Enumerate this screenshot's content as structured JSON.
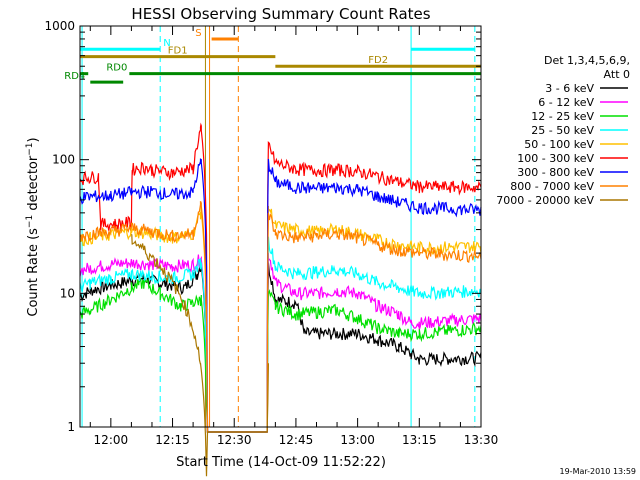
{
  "chart_data": {
    "type": "line",
    "title": "HESSI Observing Summary Count Rates",
    "xlabel": "Start Time (14-Oct-09 11:52:22)",
    "ylabel": "Count Rate (s⁻¹ detector⁻¹)",
    "ylabel_parts": {
      "pre": "Count Rate (s",
      "sup1": "−1",
      "mid": " detector",
      "sup2": "−1",
      "post": ")"
    },
    "y_scale": "log",
    "ylim": [
      1,
      1000
    ],
    "xlim_minutes": [
      -7.5,
      90
    ],
    "x_ticks": [
      {
        "label": "12:00",
        "minutes": 0
      },
      {
        "label": "12:15",
        "minutes": 15
      },
      {
        "label": "12:30",
        "minutes": 30
      },
      {
        "label": "12:45",
        "minutes": 45
      },
      {
        "label": "13:00",
        "minutes": 60
      },
      {
        "label": "13:15",
        "minutes": 75
      },
      {
        "label": "13:30",
        "minutes": 90
      }
    ],
    "y_ticks": [
      {
        "label": "1",
        "value": 1
      },
      {
        "label": "10",
        "value": 10
      },
      {
        "label": "100",
        "value": 100
      },
      {
        "label": "1000",
        "value": 1000
      }
    ],
    "legend_header": [
      "Det 1,3,4,5,6,9,",
      "Att 0"
    ],
    "series": [
      {
        "name": "3 - 6 keV",
        "color": "#000000",
        "points": [
          [
            -7.5,
            9.5
          ],
          [
            -5,
            10.5
          ],
          [
            0,
            11.5
          ],
          [
            5,
            12.5
          ],
          [
            8,
            13
          ],
          [
            12,
            12
          ],
          [
            18,
            11
          ],
          [
            21,
            14
          ],
          [
            21.8,
            16
          ],
          [
            22,
            16
          ],
          [
            23.5,
            0
          ],
          [
            38,
            0
          ],
          [
            38.3,
            16
          ],
          [
            40,
            9
          ],
          [
            45,
            8.5
          ],
          [
            47,
            5
          ],
          [
            60,
            5
          ],
          [
            65,
            4.5
          ],
          [
            70,
            4
          ],
          [
            73,
            3.5
          ],
          [
            75,
            3.2
          ],
          [
            90,
            3.3
          ]
        ]
      },
      {
        "name": "6 - 12 keV",
        "color": "#ff00ff",
        "points": [
          [
            -7.5,
            15
          ],
          [
            -5,
            15.5
          ],
          [
            0,
            16.5
          ],
          [
            5,
            17
          ],
          [
            10,
            16.5
          ],
          [
            15,
            16
          ],
          [
            20,
            16.5
          ],
          [
            21.8,
            18
          ],
          [
            22,
            18
          ],
          [
            23.5,
            0
          ],
          [
            38,
            0
          ],
          [
            38.3,
            20
          ],
          [
            40,
            12
          ],
          [
            45,
            10
          ],
          [
            50,
            10
          ],
          [
            55,
            10.5
          ],
          [
            60,
            10
          ],
          [
            65,
            8
          ],
          [
            70,
            7
          ],
          [
            73,
            6
          ],
          [
            75,
            6
          ],
          [
            90,
            6.5
          ]
        ]
      },
      {
        "name": "12 - 25 keV",
        "color": "#00e000",
        "points": [
          [
            -7.5,
            7
          ],
          [
            -5,
            7.5
          ],
          [
            0,
            9
          ],
          [
            5,
            11
          ],
          [
            8,
            12
          ],
          [
            12,
            10
          ],
          [
            17,
            8
          ],
          [
            20,
            8.5
          ],
          [
            21.8,
            9
          ],
          [
            22,
            9
          ],
          [
            23.5,
            0
          ],
          [
            38,
            0
          ],
          [
            38.3,
            10
          ],
          [
            40,
            8
          ],
          [
            45,
            7
          ],
          [
            55,
            7.5
          ],
          [
            60,
            6.5
          ],
          [
            65,
            5.5
          ],
          [
            70,
            5
          ],
          [
            75,
            5
          ],
          [
            90,
            5.5
          ]
        ]
      },
      {
        "name": "25 - 50 keV",
        "color": "#00ffff",
        "points": [
          [
            -7.5,
            11
          ],
          [
            -5,
            12
          ],
          [
            0,
            13
          ],
          [
            5,
            14
          ],
          [
            10,
            13.5
          ],
          [
            15,
            13
          ],
          [
            20,
            14
          ],
          [
            21.8,
            17
          ],
          [
            22,
            17
          ],
          [
            23.5,
            0
          ],
          [
            38,
            0
          ],
          [
            38.3,
            25
          ],
          [
            40,
            16
          ],
          [
            45,
            14
          ],
          [
            50,
            14.5
          ],
          [
            55,
            15
          ],
          [
            60,
            14
          ],
          [
            65,
            12
          ],
          [
            70,
            11
          ],
          [
            75,
            10
          ],
          [
            90,
            10.5
          ]
        ]
      },
      {
        "name": "50 - 100 keV",
        "color": "#ffc000",
        "points": [
          [
            -7.5,
            25
          ],
          [
            -5,
            26
          ],
          [
            0,
            27.5
          ],
          [
            5,
            29
          ],
          [
            10,
            28
          ],
          [
            15,
            26
          ],
          [
            20,
            28
          ],
          [
            21.8,
            40
          ],
          [
            22,
            40
          ],
          [
            23.5,
            0
          ],
          [
            38,
            0
          ],
          [
            38.3,
            45
          ],
          [
            40,
            32
          ],
          [
            45,
            30
          ],
          [
            50,
            29
          ],
          [
            55,
            30
          ],
          [
            60,
            28
          ],
          [
            65,
            25
          ],
          [
            70,
            23
          ],
          [
            75,
            22
          ],
          [
            90,
            22.5
          ]
        ]
      },
      {
        "name": "100 - 300 keV",
        "color": "#ff0000",
        "points": [
          [
            -7.5,
            72
          ],
          [
            -5,
            74
          ],
          [
            -3,
            75
          ],
          [
            -2.5,
            33
          ],
          [
            1,
            33
          ],
          [
            5,
            34
          ],
          [
            5.2,
            85
          ],
          [
            8,
            88
          ],
          [
            10,
            84
          ],
          [
            15,
            80
          ],
          [
            20,
            86
          ],
          [
            21.8,
            165
          ],
          [
            22,
            165
          ],
          [
            23.5,
            0
          ],
          [
            38,
            0
          ],
          [
            38.3,
            130
          ],
          [
            40,
            95
          ],
          [
            45,
            85
          ],
          [
            50,
            83
          ],
          [
            55,
            84
          ],
          [
            60,
            82
          ],
          [
            65,
            75
          ],
          [
            70,
            68
          ],
          [
            75,
            63
          ],
          [
            90,
            62
          ]
        ]
      },
      {
        "name": "300 - 800 keV",
        "color": "#0000ff",
        "points": [
          [
            -7.5,
            52
          ],
          [
            -5,
            53
          ],
          [
            0,
            54
          ],
          [
            5,
            57
          ],
          [
            10,
            58
          ],
          [
            15,
            55
          ],
          [
            20,
            57
          ],
          [
            21.8,
            95
          ],
          [
            22,
            95
          ],
          [
            23.5,
            0
          ],
          [
            38,
            0
          ],
          [
            38.3,
            95
          ],
          [
            40,
            68
          ],
          [
            45,
            62
          ],
          [
            50,
            61
          ],
          [
            55,
            62
          ],
          [
            60,
            60
          ],
          [
            65,
            53
          ],
          [
            70,
            48
          ],
          [
            75,
            44
          ],
          [
            90,
            42
          ]
        ]
      },
      {
        "name": "800 - 7000 keV",
        "color": "#ff8000",
        "points": [
          [
            -7.5,
            27
          ],
          [
            -5,
            28
          ],
          [
            0,
            29
          ],
          [
            5,
            31
          ],
          [
            10,
            29
          ],
          [
            15,
            27
          ],
          [
            20,
            28
          ],
          [
            21.8,
            45
          ],
          [
            22,
            45
          ],
          [
            23.5,
            0
          ],
          [
            38,
            0
          ],
          [
            38.3,
            40
          ],
          [
            40,
            28
          ],
          [
            45,
            26
          ],
          [
            50,
            27
          ],
          [
            55,
            28
          ],
          [
            60,
            26
          ],
          [
            65,
            23
          ],
          [
            70,
            21
          ],
          [
            75,
            20
          ],
          [
            90,
            19
          ]
        ]
      },
      {
        "name": "7000 - 20000 keV",
        "color": "#aa7700",
        "points": [
          [
            5,
            25
          ],
          [
            5.2,
            25
          ],
          [
            21.8,
            3
          ],
          [
            23.5,
            0
          ],
          [
            38,
            0
          ],
          [
            38.3,
            3
          ]
        ]
      }
    ],
    "state_bars": [
      {
        "label": "N",
        "color": "#00ffff",
        "start": -7.5,
        "end": 12,
        "level": 670,
        "dashed_ends": true
      },
      {
        "label": "",
        "color": "#00ffff",
        "start": 73,
        "end": 88.5,
        "level": 670,
        "dashed_ends": true
      },
      {
        "label": "S",
        "color": "#ff8000",
        "start": 24.5,
        "end": 31,
        "level": 800
      },
      {
        "label": "FD1",
        "color": "#aa8800",
        "start": -7.5,
        "end": 40,
        "level": 590
      },
      {
        "label": "FD2",
        "color": "#aa8800",
        "start": 40,
        "end": 90,
        "level": 500
      },
      {
        "label": "RD0",
        "color": "#008800",
        "start": 4.5,
        "end": 90,
        "level": 440
      },
      {
        "label": "RD4",
        "color": "#008800",
        "start": -5,
        "end": 3,
        "level": 380
      },
      {
        "label": "",
        "color": "#008800",
        "start": -7.5,
        "end": -5.5,
        "level": 440
      }
    ],
    "vertical_markers": [
      {
        "minutes": -7,
        "color": "#00ffff",
        "style": "solid"
      },
      {
        "minutes": 12,
        "color": "#00ffff",
        "style": "dashed"
      },
      {
        "minutes": 23,
        "color": "#aa8800",
        "style": "solid"
      },
      {
        "minutes": 24,
        "color": "#ff8000",
        "style": "solid"
      },
      {
        "minutes": 31,
        "color": "#ff8000",
        "style": "dashed"
      },
      {
        "minutes": 73,
        "color": "#00ffff",
        "style": "solid"
      },
      {
        "minutes": 88.5,
        "color": "#00ffff",
        "style": "dashed"
      }
    ],
    "grid": false,
    "legend_position": "right"
  },
  "footer": {
    "timestamp": "19-Mar-2010 13:59"
  }
}
